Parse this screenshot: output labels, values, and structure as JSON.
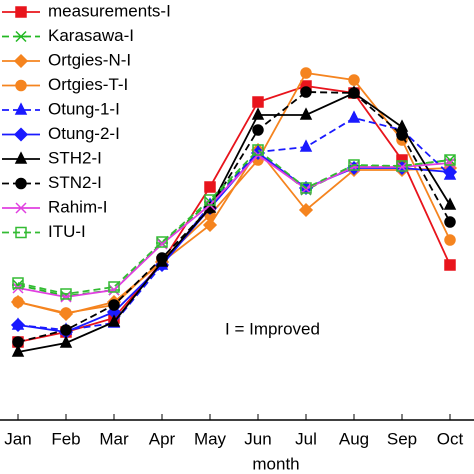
{
  "chart_data": {
    "type": "line",
    "x_label": "month",
    "annotation": "I = Improved",
    "categories": [
      "Jan",
      "Feb",
      "Mar",
      "Apr",
      "May",
      "Jun",
      "Jul",
      "Aug",
      "Sep",
      "Oct"
    ],
    "ylim": [
      0,
      420
    ],
    "series": [
      {
        "name": "measurements-I",
        "color": "#e8141c",
        "marker": "square",
        "dash": false,
        "values": [
          78,
          88,
          102,
          158,
          233,
          318,
          334,
          327,
          260,
          155
        ]
      },
      {
        "name": "Karasawa-I",
        "color": "#22b822",
        "marker": "star",
        "dash": true,
        "values": [
          135,
          124,
          130,
          177,
          218,
          268,
          230,
          254,
          254,
          260
        ]
      },
      {
        "name": "Ortgies-N-I",
        "color": "#f5841f",
        "marker": "diamond",
        "dash": false,
        "values": [
          118,
          106,
          118,
          158,
          195,
          270,
          210,
          250,
          250,
          252
        ]
      },
      {
        "name": "Ortgies-T-I",
        "color": "#f5841f",
        "marker": "circle",
        "dash": false,
        "values": [
          118,
          107,
          115,
          160,
          205,
          260,
          347,
          340,
          280,
          180
        ]
      },
      {
        "name": "Otung-1-I",
        "color": "#1a1aff",
        "marker": "triangle",
        "dash": true,
        "values": [
          95,
          90,
          97,
          155,
          215,
          268,
          273,
          302,
          290,
          245
        ]
      },
      {
        "name": "Otung-2-I",
        "color": "#1a1aff",
        "marker": "diamond",
        "dash": false,
        "values": [
          95,
          88,
          108,
          155,
          212,
          267,
          232,
          252,
          252,
          248
        ]
      },
      {
        "name": "STH2-I",
        "color": "#000000",
        "marker": "triangle",
        "dash": false,
        "values": [
          68,
          77,
          98,
          158,
          212,
          305,
          305,
          327,
          293,
          215
        ]
      },
      {
        "name": "STN2-I",
        "color": "#000000",
        "marker": "circle",
        "dash": true,
        "values": [
          78,
          90,
          115,
          162,
          212,
          290,
          328,
          327,
          285,
          198
        ]
      },
      {
        "name": "Rahim-I",
        "color": "#e040e0",
        "marker": "x",
        "dash": false,
        "values": [
          132,
          123,
          130,
          176,
          215,
          265,
          231,
          253,
          253,
          257
        ]
      },
      {
        "name": "ITU-I",
        "color": "#33bb33",
        "marker": "square-open",
        "dash": true,
        "values": [
          137,
          126,
          133,
          178,
          220,
          270,
          232,
          255,
          254,
          260
        ]
      }
    ]
  }
}
